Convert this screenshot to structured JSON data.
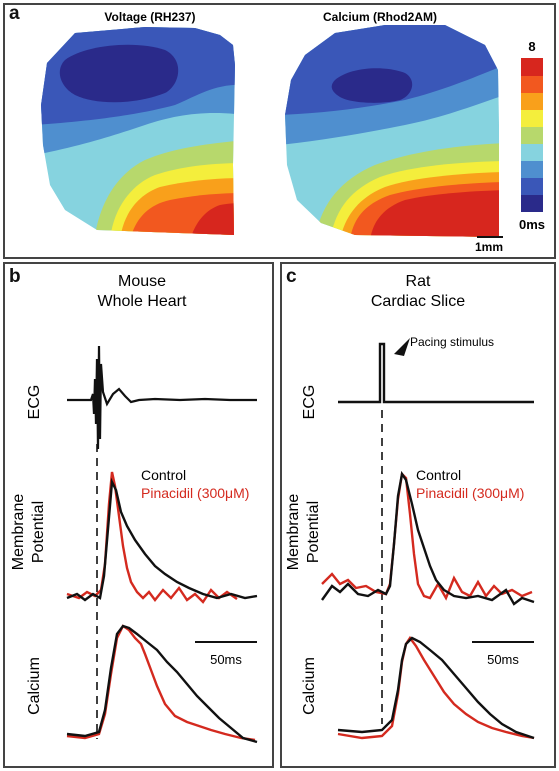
{
  "panel_a": {
    "label": "a",
    "map_voltage_title": "Voltage (RH237)",
    "map_calcium_title": "Calcium (Rhod2AM)",
    "scale_max": "8",
    "scale_min": "0ms",
    "scale_bar": "1mm",
    "colormap": [
      "#d7261e",
      "#f2581f",
      "#f9a01b",
      "#f4ee3c",
      "#b7d86c",
      "#86d3df",
      "#4f8fcf",
      "#3a57b8",
      "#2a2a8a"
    ]
  },
  "panel_b": {
    "label": "b",
    "title_line1": "Mouse",
    "title_line2": "Whole Heart",
    "ecg_label": "ECG",
    "membrane_label_line1": "Membrane",
    "membrane_label_line2": "Potential",
    "calcium_label": "Calcium",
    "legend_control": "Control",
    "legend_pinacidil": "Pinacidil (300μM)",
    "time_scale": "50ms"
  },
  "panel_c": {
    "label": "c",
    "title_line1": "Rat",
    "title_line2": "Cardiac Slice",
    "ecg_label": "ECG",
    "pacing_label": "Pacing stimulus",
    "membrane_label_line1": "Membrane",
    "membrane_label_line2": "Potential",
    "calcium_label": "Calcium",
    "legend_control": "Control",
    "legend_pinacidil": "Pinacidil (300μM)",
    "time_scale": "50ms"
  },
  "colors": {
    "control": "#111111",
    "pinacidil": "#d42a1f"
  }
}
